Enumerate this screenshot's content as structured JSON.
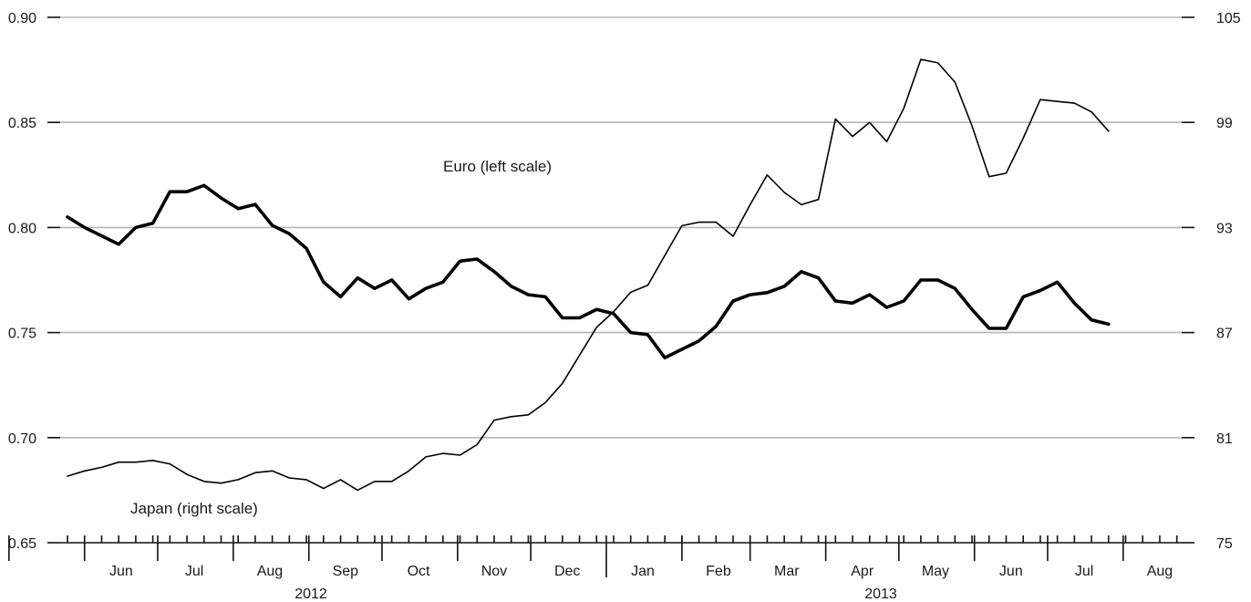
{
  "chart_data": {
    "type": "line",
    "left_axis": {
      "ticks": [
        "0.65",
        "0.70",
        "0.75",
        "0.80",
        "0.85",
        "0.90"
      ],
      "ylim": [
        0.65,
        0.9
      ]
    },
    "right_axis": {
      "ticks": [
        "75",
        "81",
        "87",
        "93",
        "99",
        "105"
      ],
      "ylim": [
        75,
        105
      ]
    },
    "x_axis": {
      "months": [
        "Jun",
        "Jul",
        "Aug",
        "Sep",
        "Oct",
        "Nov",
        "Dec",
        "Jan",
        "Feb",
        "Mar",
        "Apr",
        "May",
        "Jun",
        "Jul",
        "Aug"
      ],
      "years": [
        "2012",
        "2013"
      ]
    },
    "grid": true,
    "series": [
      {
        "name": "Euro (left scale)",
        "axis": "left",
        "line": "thick",
        "x": [
          "2012-05-25",
          "2012-06-01",
          "2012-06-08",
          "2012-06-15",
          "2012-06-22",
          "2012-06-29",
          "2012-07-06",
          "2012-07-13",
          "2012-07-20",
          "2012-07-27",
          "2012-08-03",
          "2012-08-10",
          "2012-08-17",
          "2012-08-24",
          "2012-08-31",
          "2012-09-07",
          "2012-09-14",
          "2012-09-21",
          "2012-09-28",
          "2012-10-05",
          "2012-10-12",
          "2012-10-19",
          "2012-10-26",
          "2012-11-02",
          "2012-11-09",
          "2012-11-16",
          "2012-11-23",
          "2012-11-30",
          "2012-12-07",
          "2012-12-14",
          "2012-12-21",
          "2012-12-28",
          "2013-01-04",
          "2013-01-11",
          "2013-01-18",
          "2013-01-25",
          "2013-02-01",
          "2013-02-08",
          "2013-02-15",
          "2013-02-22",
          "2013-03-01",
          "2013-03-08",
          "2013-03-15",
          "2013-03-22",
          "2013-03-29",
          "2013-04-05",
          "2013-04-12",
          "2013-04-19",
          "2013-04-26",
          "2013-05-03",
          "2013-05-10",
          "2013-05-17",
          "2013-05-24",
          "2013-05-31",
          "2013-06-07",
          "2013-06-14",
          "2013-06-21",
          "2013-06-28",
          "2013-07-05",
          "2013-07-12",
          "2013-07-19",
          "2013-07-26"
        ],
        "values": [
          0.805,
          0.8,
          0.796,
          0.792,
          0.8,
          0.802,
          0.817,
          0.817,
          0.82,
          0.814,
          0.809,
          0.811,
          0.801,
          0.797,
          0.79,
          0.774,
          0.767,
          0.776,
          0.771,
          0.775,
          0.766,
          0.771,
          0.774,
          0.784,
          0.785,
          0.779,
          0.772,
          0.768,
          0.767,
          0.757,
          0.757,
          0.761,
          0.759,
          0.75,
          0.749,
          0.738,
          0.742,
          0.746,
          0.753,
          0.765,
          0.768,
          0.769,
          0.772,
          0.779,
          0.776,
          0.765,
          0.764,
          0.768,
          0.762,
          0.765,
          0.775,
          0.775,
          0.771,
          0.761,
          0.752,
          0.752,
          0.767,
          0.77,
          0.774,
          0.764,
          0.756,
          0.754
        ]
      },
      {
        "name": "Japan (right scale)",
        "axis": "right",
        "line": "thin",
        "x": [
          "2012-05-25",
          "2012-06-01",
          "2012-06-08",
          "2012-06-15",
          "2012-06-22",
          "2012-06-29",
          "2012-07-06",
          "2012-07-13",
          "2012-07-20",
          "2012-07-27",
          "2012-08-03",
          "2012-08-10",
          "2012-08-17",
          "2012-08-24",
          "2012-08-31",
          "2012-09-07",
          "2012-09-14",
          "2012-09-21",
          "2012-09-28",
          "2012-10-05",
          "2012-10-12",
          "2012-10-19",
          "2012-10-26",
          "2012-11-02",
          "2012-11-09",
          "2012-11-16",
          "2012-11-23",
          "2012-11-30",
          "2012-12-07",
          "2012-12-14",
          "2012-12-21",
          "2012-12-28",
          "2013-01-04",
          "2013-01-11",
          "2013-01-18",
          "2013-01-25",
          "2013-02-01",
          "2013-02-08",
          "2013-02-15",
          "2013-02-22",
          "2013-03-01",
          "2013-03-08",
          "2013-03-15",
          "2013-03-22",
          "2013-03-29",
          "2013-04-05",
          "2013-04-12",
          "2013-04-19",
          "2013-04-26",
          "2013-05-03",
          "2013-05-10",
          "2013-05-17",
          "2013-05-24",
          "2013-05-31",
          "2013-06-07",
          "2013-06-14",
          "2013-06-21",
          "2013-06-28",
          "2013-07-05",
          "2013-07-12",
          "2013-07-19",
          "2013-07-26"
        ],
        "values": [
          78.8,
          79.1,
          79.3,
          79.6,
          79.6,
          79.7,
          79.5,
          78.9,
          78.5,
          78.4,
          78.6,
          79.0,
          79.1,
          78.7,
          78.6,
          78.1,
          78.6,
          78.0,
          78.5,
          78.5,
          79.1,
          79.9,
          80.1,
          80.0,
          80.6,
          82.0,
          82.2,
          82.3,
          83.0,
          84.1,
          85.7,
          87.3,
          88.2,
          89.3,
          89.7,
          91.4,
          93.1,
          93.3,
          93.3,
          92.5,
          94.3,
          96.0,
          95.0,
          94.3,
          94.6,
          99.2,
          98.2,
          99.0,
          97.9,
          99.8,
          102.6,
          102.4,
          101.3,
          98.8,
          95.9,
          96.1,
          98.1,
          100.3,
          100.2,
          100.1,
          99.6,
          98.5
        ]
      }
    ]
  },
  "annotations": {
    "euro_label": "Euro (left scale)",
    "japan_label": "Japan (right scale)"
  }
}
